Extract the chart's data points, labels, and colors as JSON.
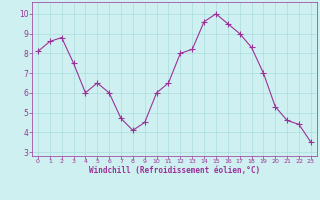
{
  "x": [
    0,
    1,
    2,
    3,
    4,
    5,
    6,
    7,
    8,
    9,
    10,
    11,
    12,
    13,
    14,
    15,
    16,
    17,
    18,
    19,
    20,
    21,
    22,
    23
  ],
  "y": [
    8.1,
    8.6,
    8.8,
    7.5,
    6.0,
    6.5,
    6.0,
    4.7,
    4.1,
    4.5,
    6.0,
    6.5,
    8.0,
    8.2,
    9.6,
    10.0,
    9.5,
    9.0,
    8.3,
    7.0,
    5.3,
    4.6,
    4.4,
    3.5
  ],
  "line_color": "#993399",
  "marker": "D",
  "marker_size": 2.0,
  "bg_color": "#cff0f0",
  "grid_color": "#aadddd",
  "xlabel": "Windchill (Refroidissement éolien,°C)",
  "xlabel_color": "#993399",
  "tick_color": "#993399",
  "spine_color": "#993399",
  "xlim": [
    -0.5,
    23.5
  ],
  "ylim": [
    2.8,
    10.6
  ],
  "yticks": [
    3,
    4,
    5,
    6,
    7,
    8,
    9,
    10
  ],
  "xticks": [
    0,
    1,
    2,
    3,
    4,
    5,
    6,
    7,
    8,
    9,
    10,
    11,
    12,
    13,
    14,
    15,
    16,
    17,
    18,
    19,
    20,
    21,
    22,
    23
  ],
  "figsize": [
    3.2,
    2.0
  ],
  "dpi": 100
}
